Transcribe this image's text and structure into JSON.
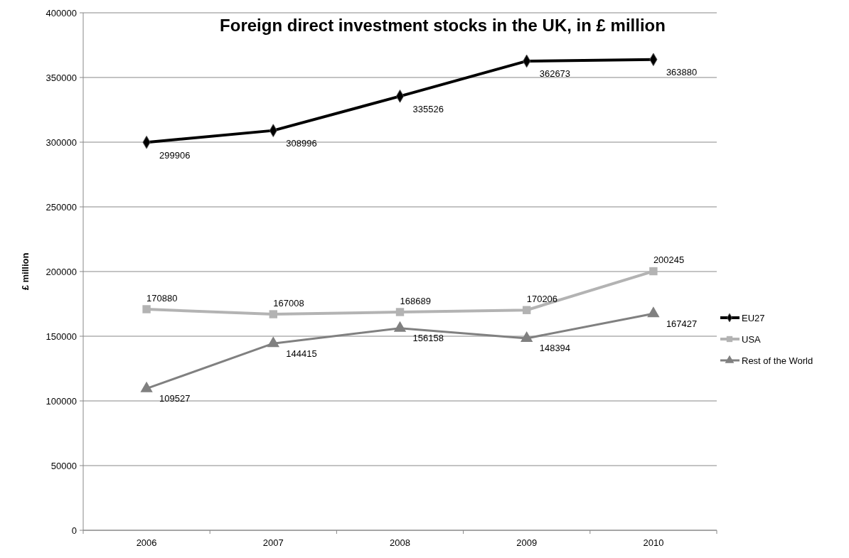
{
  "chart_data": {
    "type": "line",
    "title": "Foreign direct investment stocks in the UK, in £ million",
    "ylabel": "£ million",
    "categories": [
      "2006",
      "2007",
      "2008",
      "2009",
      "2010"
    ],
    "series": [
      {
        "name": "EU27",
        "color": "#000000",
        "marker": "diamond",
        "values": [
          299906,
          308996,
          335526,
          362673,
          363880
        ]
      },
      {
        "name": "USA",
        "color": "#b3b3b3",
        "marker": "square",
        "values": [
          170880,
          167008,
          168689,
          170206,
          200245
        ]
      },
      {
        "name": "Rest of the World",
        "color": "#808080",
        "marker": "triangle",
        "values": [
          109527,
          144415,
          156158,
          148394,
          167427
        ]
      }
    ],
    "ylim": [
      0,
      400000
    ],
    "yticks": [
      0,
      50000,
      100000,
      150000,
      200000,
      250000,
      300000,
      350000,
      400000
    ],
    "grid": "y",
    "legend": "right",
    "data_labels": true,
    "line_style": "solid"
  }
}
